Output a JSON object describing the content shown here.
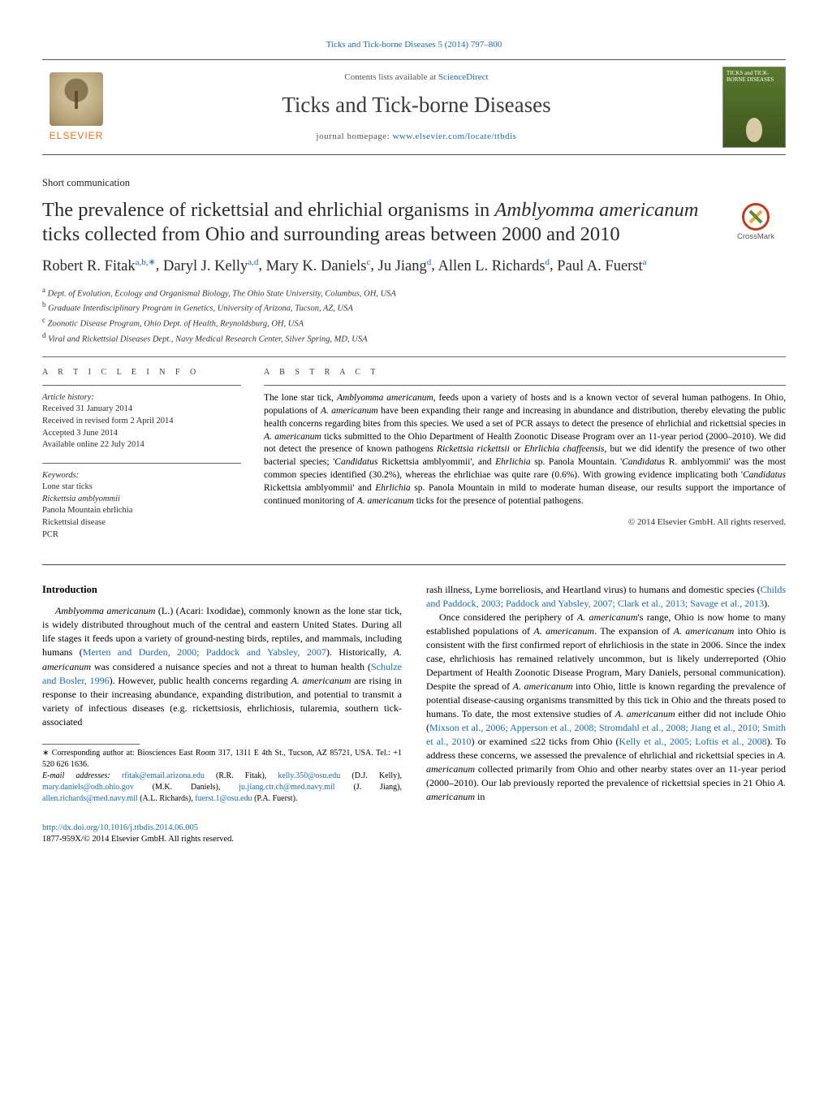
{
  "colors": {
    "link": "#1a6ba8",
    "text": "#000000",
    "muted": "#555555",
    "elsevier_orange": "#e9711c",
    "rule": "#555555"
  },
  "fonts": {
    "body_family": "Georgia, 'Times New Roman', serif",
    "body_size_pt": 9,
    "title_size_pt": 18,
    "journal_title_size_pt": 20,
    "authors_size_pt": 14,
    "abstract_size_pt": 8.5,
    "footnote_size_pt": 7.5
  },
  "header": {
    "citation": "Ticks and Tick-borne Diseases 5 (2014) 797–800",
    "contents_prefix": "Contents lists available at ",
    "contents_link": "ScienceDirect",
    "journal_title": "Ticks and Tick-borne Diseases",
    "homepage_prefix": "journal homepage: ",
    "homepage_url": "www.elsevier.com/locate/ttbdis",
    "publisher_logo_alt": "ELSEVIER",
    "cover_alt": "TICKS and TICK-BORNE DISEASES"
  },
  "article": {
    "type": "Short communication",
    "title_pre": "The prevalence of rickettsial and ehrlichial organisms in ",
    "title_ital": "Amblyomma americanum",
    "title_post": " ticks collected from Ohio and surrounding areas between 2000 and 2010",
    "crossmark_label": "CrossMark"
  },
  "authors": [
    {
      "name": "Robert R. Fitak",
      "marks": "a,b,∗"
    },
    {
      "name": "Daryl J. Kelly",
      "marks": "a,d"
    },
    {
      "name": "Mary K. Daniels",
      "marks": "c"
    },
    {
      "name": "Ju Jiang",
      "marks": "d"
    },
    {
      "name": "Allen L. Richards",
      "marks": "d"
    },
    {
      "name": "Paul A. Fuerst",
      "marks": "a"
    }
  ],
  "affiliations": [
    {
      "mark": "a",
      "text": "Dept. of Evolution, Ecology and Organismal Biology, The Ohio State University, Columbus, OH, USA"
    },
    {
      "mark": "b",
      "text": "Graduate Interdisciplinary Program in Genetics, University of Arizona, Tucson, AZ, USA"
    },
    {
      "mark": "c",
      "text": "Zoonotic Disease Program, Ohio Dept. of Health, Reynoldsburg, OH, USA"
    },
    {
      "mark": "d",
      "text": "Viral and Rickettsial Diseases Dept., Navy Medical Research Center, Silver Spring, MD, USA"
    }
  ],
  "article_info": {
    "heading": "a r t i c l e   i n f o",
    "history_label": "Article history:",
    "history": [
      "Received 31 January 2014",
      "Received in revised form 2 April 2014",
      "Accepted 3 June 2014",
      "Available online 22 July 2014"
    ],
    "keywords_label": "Keywords:",
    "keywords": [
      "Lone star ticks",
      "Rickettsia amblyommii",
      "Panola Mountain ehrlichia",
      "Rickettsial disease",
      "PCR"
    ]
  },
  "abstract": {
    "heading": "a b s t r a c t",
    "text_parts": [
      {
        "t": "The lone star tick, "
      },
      {
        "t": "Amblyomma americanum",
        "ital": true
      },
      {
        "t": ", feeds upon a variety of hosts and is a known vector of several human pathogens. In Ohio, populations of "
      },
      {
        "t": "A. americanum",
        "ital": true
      },
      {
        "t": " have been expanding their range and increasing in abundance and distribution, thereby elevating the public health concerns regarding bites from this species. We used a set of PCR assays to detect the presence of ehrlichial and rickettsial species in "
      },
      {
        "t": "A. americanum",
        "ital": true
      },
      {
        "t": " ticks submitted to the Ohio Department of Health Zoonotic Disease Program over an 11-year period (2000–2010). We did not detect the presence of known pathogens "
      },
      {
        "t": "Rickettsia rickettsii",
        "ital": true
      },
      {
        "t": " or "
      },
      {
        "t": "Ehrlichia chaffeensis",
        "ital": true
      },
      {
        "t": ", but we did identify the presence of two other bacterial species; '"
      },
      {
        "t": "Candidatus",
        "ital": true
      },
      {
        "t": " Rickettsia amblyommii', and "
      },
      {
        "t": "Ehrlichia",
        "ital": true
      },
      {
        "t": " sp. Panola Mountain. '"
      },
      {
        "t": "Candidatus",
        "ital": true
      },
      {
        "t": " R. amblyommii' was the most common species identified (30.2%), whereas the ehrlichiae was quite rare (0.6%). With growing evidence implicating both '"
      },
      {
        "t": "Candidatus",
        "ital": true
      },
      {
        "t": " Rickettsia amblyommii' and "
      },
      {
        "t": "Ehrlichia",
        "ital": true
      },
      {
        "t": " sp. Panola Mountain in mild to moderate human disease, our results support the importance of continued monitoring of "
      },
      {
        "t": "A. americanum",
        "ital": true
      },
      {
        "t": " ticks for the presence of potential pathogens."
      }
    ],
    "copyright": "© 2014 Elsevier GmbH. All rights reserved."
  },
  "body": {
    "intro_heading": "Introduction",
    "p1": [
      {
        "t": "Amblyomma americanum",
        "ital": true
      },
      {
        "t": " (L.) (Acari: Ixodidae), commonly known as the lone star tick, is widely distributed throughout much of the central and eastern United States. During all life stages it feeds upon a variety of ground-nesting birds, reptiles, and mammals, including humans ("
      },
      {
        "t": "Merten and Durden, 2000; Paddock and Yabsley, 2007",
        "cite": true
      },
      {
        "t": "). Historically, "
      },
      {
        "t": "A. americanum",
        "ital": true
      },
      {
        "t": " was considered a nuisance species and not a threat to human health ("
      },
      {
        "t": "Schulze and Bosler, 1996",
        "cite": true
      },
      {
        "t": "). However, public health concerns regarding "
      },
      {
        "t": "A. americanum",
        "ital": true
      },
      {
        "t": " are rising in response to their increasing abundance, expanding distribution, and potential to transmit a variety of infectious diseases (e.g. rickettsiosis, ehrlichiosis, tularemia, southern tick-associated "
      }
    ],
    "p1_cont": [
      {
        "t": "rash illness, Lyme borreliosis, and Heartland virus) to humans and domestic species ("
      },
      {
        "t": "Childs and Paddock, 2003; Paddock and Yabsley, 2007; Clark et al., 2013; Savage et al., 2013",
        "cite": true
      },
      {
        "t": ")."
      }
    ],
    "p2": [
      {
        "t": "Once considered the periphery of "
      },
      {
        "t": "A. americanum",
        "ital": true
      },
      {
        "t": "'s range, Ohio is now home to many established populations of "
      },
      {
        "t": "A. americanum",
        "ital": true
      },
      {
        "t": ". The expansion of "
      },
      {
        "t": "A. americanum",
        "ital": true
      },
      {
        "t": " into Ohio is consistent with the first confirmed report of ehrlichiosis in the state in 2006. Since the index case, ehrlichiosis has remained relatively uncommon, but is likely underreported (Ohio Department of Health Zoonotic Disease Program, Mary Daniels, personal communication). Despite the spread of "
      },
      {
        "t": "A. americanum",
        "ital": true
      },
      {
        "t": " into Ohio, little is known regarding the prevalence of potential disease-causing organisms transmitted by this tick in Ohio and the threats posed to humans. To date, the most extensive studies of "
      },
      {
        "t": "A. americanum",
        "ital": true
      },
      {
        "t": " either did not include Ohio ("
      },
      {
        "t": "Mixson et al., 2006; Apperson et al., 2008; Stromdahl et al., 2008; Jiang et al., 2010; Smith et al., 2010",
        "cite": true
      },
      {
        "t": ") or examined ≤22 ticks from Ohio ("
      },
      {
        "t": "Kelly et al., 2005; Loftis et al., 2008",
        "cite": true
      },
      {
        "t": "). To address these concerns, we assessed the prevalence of ehrlichial and rickettsial species in "
      },
      {
        "t": "A. americanum",
        "ital": true
      },
      {
        "t": " collected primarily from Ohio and other nearby states over an 11-year period (2000–2010). Our lab previously reported the prevalence of rickettsial species in 21 Ohio "
      },
      {
        "t": "A. americanum",
        "ital": true
      },
      {
        "t": " in"
      }
    ]
  },
  "footnotes": {
    "corr_label": "∗ Corresponding author at: Biosciences East Room 317, 1311 E 4th St., Tucson, AZ 85721, USA. Tel.: +1 520 626 1636.",
    "email_label": "E-mail addresses:",
    "emails": [
      {
        "addr": "rfitak@email.arizona.edu",
        "who": "(R.R. Fitak)"
      },
      {
        "addr": "kelly.350@osu.edu",
        "who": "(D.J. Kelly)"
      },
      {
        "addr": "mary.daniels@odh.ohio.gov",
        "who": "(M.K. Daniels)"
      },
      {
        "addr": "ju.jiang.ctr.ch@med.navy.mil",
        "who": "(J. Jiang)"
      },
      {
        "addr": "allen.richards@med.navy.mil",
        "who": "(A.L. Richards)"
      },
      {
        "addr": "fuerst.1@osu.edu",
        "who": "(P.A. Fuerst)"
      }
    ]
  },
  "footer": {
    "doi": "http://dx.doi.org/10.1016/j.ttbdis.2014.06.005",
    "issn_line": "1877-959X/© 2014 Elsevier GmbH. All rights reserved."
  }
}
